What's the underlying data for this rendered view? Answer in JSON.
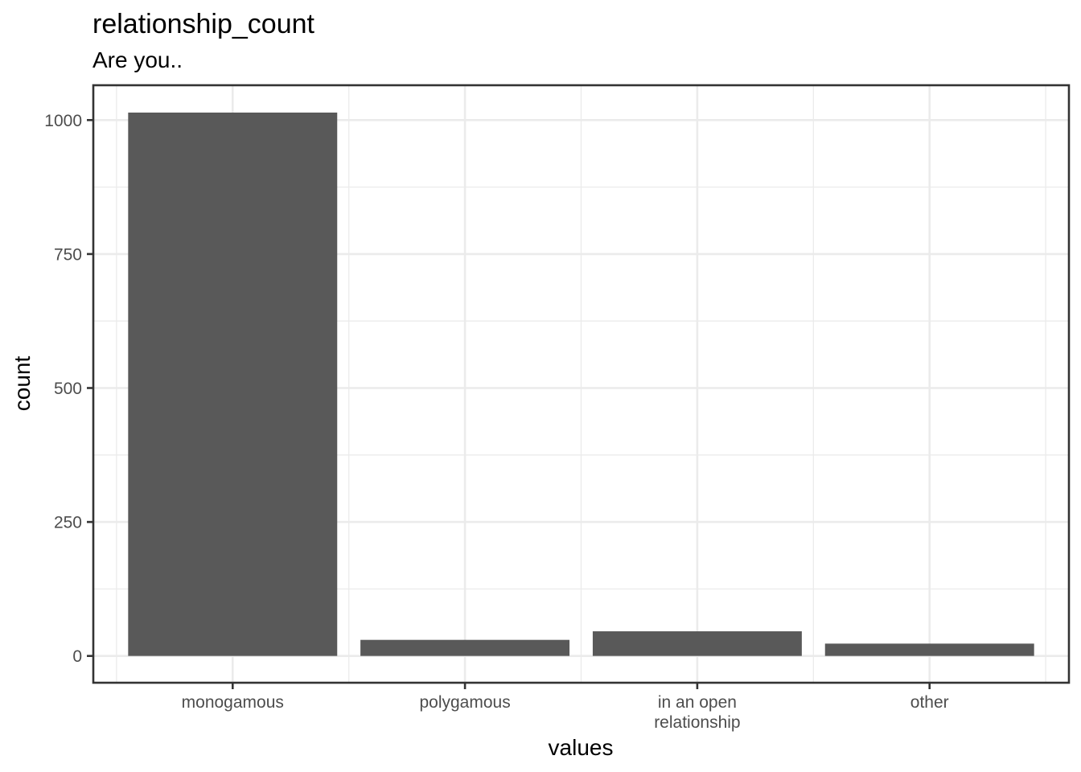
{
  "chart_data": {
    "type": "bar",
    "title": "relationship_count",
    "subtitle": "Are you..",
    "xlabel": "values",
    "ylabel": "count",
    "categories": [
      "monogamous",
      "polygamous",
      "in an open\nrelationship",
      "other"
    ],
    "values": [
      1014,
      30,
      46,
      23
    ],
    "ylim": [
      -50,
      1065
    ],
    "yticks": [
      0,
      250,
      500,
      750,
      1000
    ],
    "bar_color": "#595959",
    "grid": true,
    "legend": "none"
  }
}
